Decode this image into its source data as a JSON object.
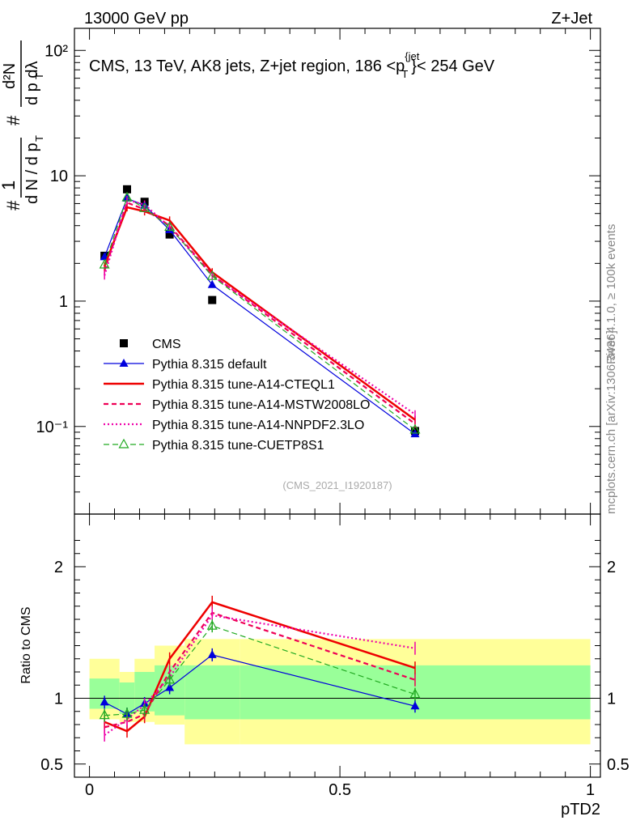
{
  "header": {
    "left": "13000 GeV pp",
    "right": "Z+Jet"
  },
  "side_text": {
    "rivet": "Rivet 4.1.0, ≥ 100k events",
    "mcplots": "mcplots.cern.ch [arXiv:1306.3436]"
  },
  "chart_data": [
    {
      "panel": "main",
      "type": "line",
      "title": "CMS, 13 TeV, AK8 jets, Z+jet region, 186 <p_T^{jet}< 254 GeV",
      "ylabel": "1/dN/dp_T  d²N/dp_T dλ",
      "xlabel": "pTD2",
      "yscale": "log",
      "ylim": [
        0.02,
        150
      ],
      "xlim": [
        -0.03,
        1.02
      ],
      "analysis_id": "(CMS_2021_I1920187)",
      "y_tick_labels": [
        "10⁻¹",
        "1",
        "10",
        "10²"
      ],
      "x": [
        0.03,
        0.075,
        0.11,
        0.16,
        0.245,
        0.65
      ],
      "series": [
        {
          "name": "CMS",
          "color": "#000000",
          "marker": "square",
          "values": [
            2.3,
            7.8,
            6.2,
            3.4,
            1.02,
            0.092
          ]
        },
        {
          "name": "Pythia 8.315 default",
          "color": "#0000dd",
          "marker": "triangle",
          "values": [
            2.25,
            6.6,
            5.8,
            3.7,
            1.35,
            0.087
          ]
        },
        {
          "name": "Pythia 8.315 tune-A14-CTEQL1",
          "color": "#ee0000",
          "marker": "none",
          "values": [
            1.9,
            5.6,
            5.2,
            4.4,
            1.7,
            0.113
          ]
        },
        {
          "name": "Pythia 8.315 tune-A14-MSTW2008LO",
          "color": "#ee0055",
          "marker": "none",
          "values": [
            1.75,
            6.1,
            5.4,
            4.0,
            1.62,
            0.105
          ]
        },
        {
          "name": "Pythia 8.315 tune-A14-NNPDF2.3LO",
          "color": "#ee00aa",
          "marker": "none",
          "values": [
            1.6,
            6.4,
            5.9,
            3.9,
            1.6,
            0.125
          ]
        },
        {
          "name": "Pythia 8.315 tune-CUETP8S1",
          "color": "#22aa22",
          "marker": "open-triangle",
          "values": [
            1.95,
            6.7,
            5.5,
            3.9,
            1.58,
            0.094
          ]
        }
      ]
    },
    {
      "panel": "ratio",
      "type": "line",
      "ylabel": "Ratio to CMS",
      "xlabel": "pTD2",
      "ylim": [
        0.4,
        2.4
      ],
      "y_tick_labels": [
        "0.5",
        "1",
        "2"
      ],
      "x_tick_labels": [
        "0",
        "0.5",
        "1"
      ],
      "x": [
        0.03,
        0.075,
        0.11,
        0.16,
        0.245,
        0.65
      ],
      "bands": {
        "edges": [
          0.0,
          0.06,
          0.09,
          0.13,
          0.19,
          0.3,
          1.0
        ],
        "inner": [
          [
            0.92,
            1.15
          ],
          [
            0.88,
            1.12
          ],
          [
            0.9,
            1.2
          ],
          [
            0.87,
            1.25
          ],
          [
            0.84,
            1.25
          ],
          [
            0.84,
            1.25
          ]
        ],
        "outer": [
          [
            0.84,
            1.3
          ],
          [
            0.82,
            1.2
          ],
          [
            0.82,
            1.3
          ],
          [
            0.8,
            1.4
          ],
          [
            0.65,
            1.45
          ],
          [
            0.65,
            1.45
          ]
        ]
      },
      "series": [
        {
          "name": "Pythia 8.315 default",
          "color": "#0000dd",
          "values": [
            0.97,
            0.88,
            0.96,
            1.08,
            1.33,
            0.94
          ]
        },
        {
          "name": "Pythia 8.315 tune-A14-CTEQL1",
          "color": "#ee0000",
          "values": [
            0.82,
            0.75,
            0.86,
            1.3,
            1.73,
            1.23
          ]
        },
        {
          "name": "Pythia 8.315 tune-A14-MSTW2008LO",
          "color": "#ee0055",
          "values": [
            0.78,
            0.82,
            0.88,
            1.2,
            1.65,
            1.14
          ]
        },
        {
          "name": "Pythia 8.315 tune-A14-NNPDF2.3LO",
          "color": "#ee00aa",
          "values": [
            0.72,
            0.84,
            0.95,
            1.16,
            1.63,
            1.38
          ]
        },
        {
          "name": "Pythia 8.315 tune-CUETP8S1",
          "color": "#22aa22",
          "values": [
            0.87,
            0.88,
            0.91,
            1.14,
            1.55,
            1.03
          ]
        }
      ]
    }
  ]
}
